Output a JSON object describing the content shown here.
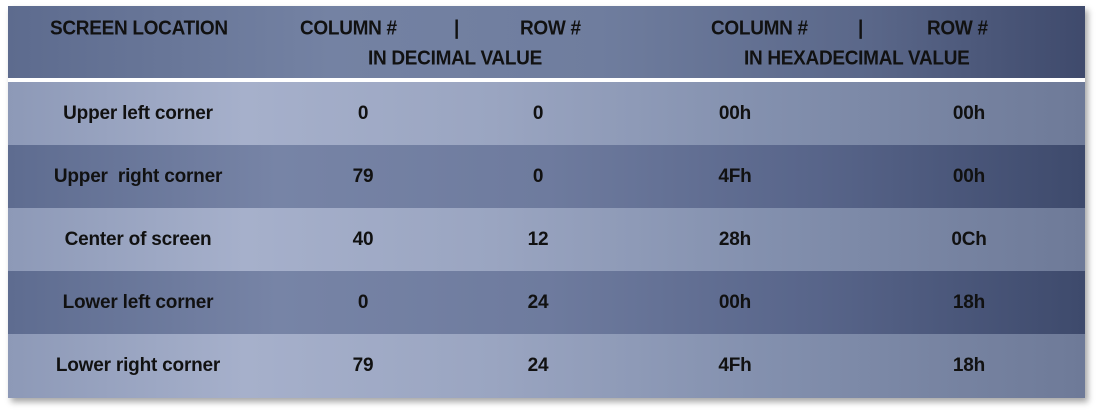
{
  "header": {
    "screen_location": "SCREEN LOCATION",
    "dec_column": "COLUMN #",
    "dec_divider": "|",
    "dec_row": "ROW #",
    "dec_caption": "IN DECIMAL VALUE",
    "hex_column": "COLUMN #",
    "hex_divider": "|",
    "hex_row": "ROW #",
    "hex_caption": "IN HEXADECIMAL VALUE"
  },
  "rows": [
    {
      "location": "Upper left corner",
      "dec_col": "0",
      "dec_row": "0",
      "hex_col": "00h",
      "hex_row": "00h"
    },
    {
      "location": "Upper  right corner",
      "dec_col": "79",
      "dec_row": "0",
      "hex_col": "4Fh",
      "hex_row": "00h"
    },
    {
      "location": "Center of screen",
      "dec_col": "40",
      "dec_row": "12",
      "hex_col": "28h",
      "hex_row": "0Ch"
    },
    {
      "location": "Lower left corner",
      "dec_col": "0",
      "dec_row": "24",
      "hex_col": "00h",
      "hex_row": "18h"
    },
    {
      "location": "Lower right corner",
      "dec_col": "79",
      "dec_row": "24",
      "hex_col": "4Fh",
      "hex_row": "18h"
    }
  ],
  "colors": {
    "header_bg": "#5d6b8e",
    "separator": "#ffffff",
    "row_light": "#a6b0cb",
    "row_dark": "#6e7b9e",
    "text": "#111111"
  }
}
